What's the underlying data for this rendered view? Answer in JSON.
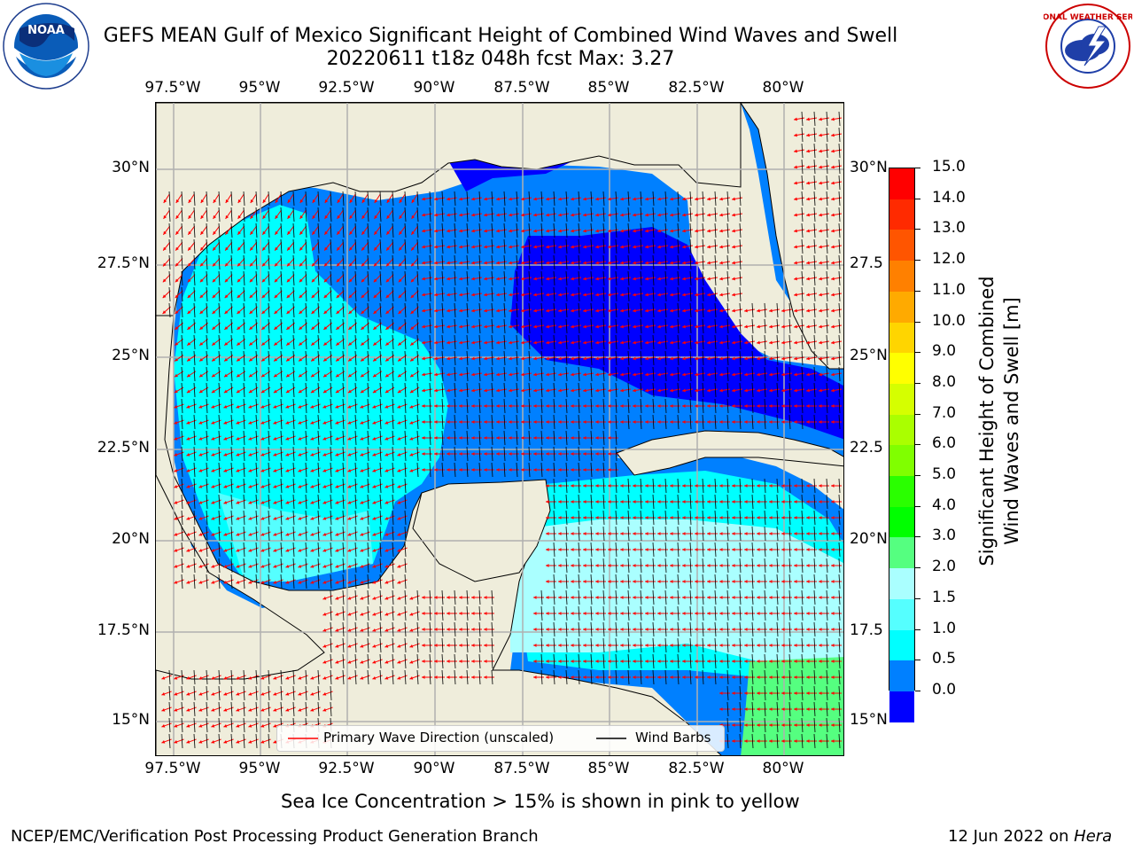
{
  "title": {
    "line1": "GEFS MEAN Gulf of Mexico Significant Height of Combined Wind Waves and Swell",
    "line2": "20220611 t18z 048h fcst   Max: 3.27"
  },
  "logos": {
    "noaa_text": "NOAA",
    "nws_text": "NATIONAL WEATHER SERVICE"
  },
  "axes": {
    "lon_labels": [
      "97.5°W",
      "95°W",
      "92.5°W",
      "90°W",
      "87.5°W",
      "85°W",
      "82.5°W",
      "80°W"
    ],
    "lat_labels_left": [
      "30°N",
      "27.5°N",
      "25°N",
      "22.5°N",
      "20°N",
      "17.5°N",
      "15°N"
    ],
    "lat_labels_right": [
      "30°N",
      "27.5",
      "25°N",
      "22.5",
      "20°N",
      "17.5",
      "15°N"
    ]
  },
  "colorbar": {
    "label_line1": "Significant Height of Combined",
    "label_line2": "Wind Waves and Swell [m]",
    "ticks": [
      "15.0",
      "14.0",
      "13.0",
      "12.0",
      "11.0",
      "10.0",
      "9.0",
      "8.0",
      "7.0",
      "6.0",
      "5.0",
      "4.0",
      "3.0",
      "2.0",
      "1.5",
      "1.0",
      "0.5",
      "0.0"
    ],
    "colors": [
      "#ff0000",
      "#ff2a00",
      "#ff5500",
      "#ff8000",
      "#ffaa00",
      "#ffd500",
      "#ffff00",
      "#d5ff00",
      "#aaff00",
      "#80ff00",
      "#2aff00",
      "#00ff00",
      "#55ff80",
      "#aaffff",
      "#55ffff",
      "#00ffff",
      "#0080ff",
      "#0000ff"
    ]
  },
  "legend": {
    "wave_label": "Primary Wave Direction (unscaled)",
    "barb_label": "Wind Barbs",
    "wave_color": "#ff0000",
    "barb_color": "#000000"
  },
  "note": "Sea Ice Concentration > 15% is shown in pink to yellow",
  "footer": {
    "left": "NCEP/EMC/Verification Post Processing Product Generation Branch",
    "right_date": "12 Jun 2022 on ",
    "right_host": "Hera"
  },
  "map_colors": {
    "land": "#efeddb",
    "grid": "#b0b0b0"
  }
}
